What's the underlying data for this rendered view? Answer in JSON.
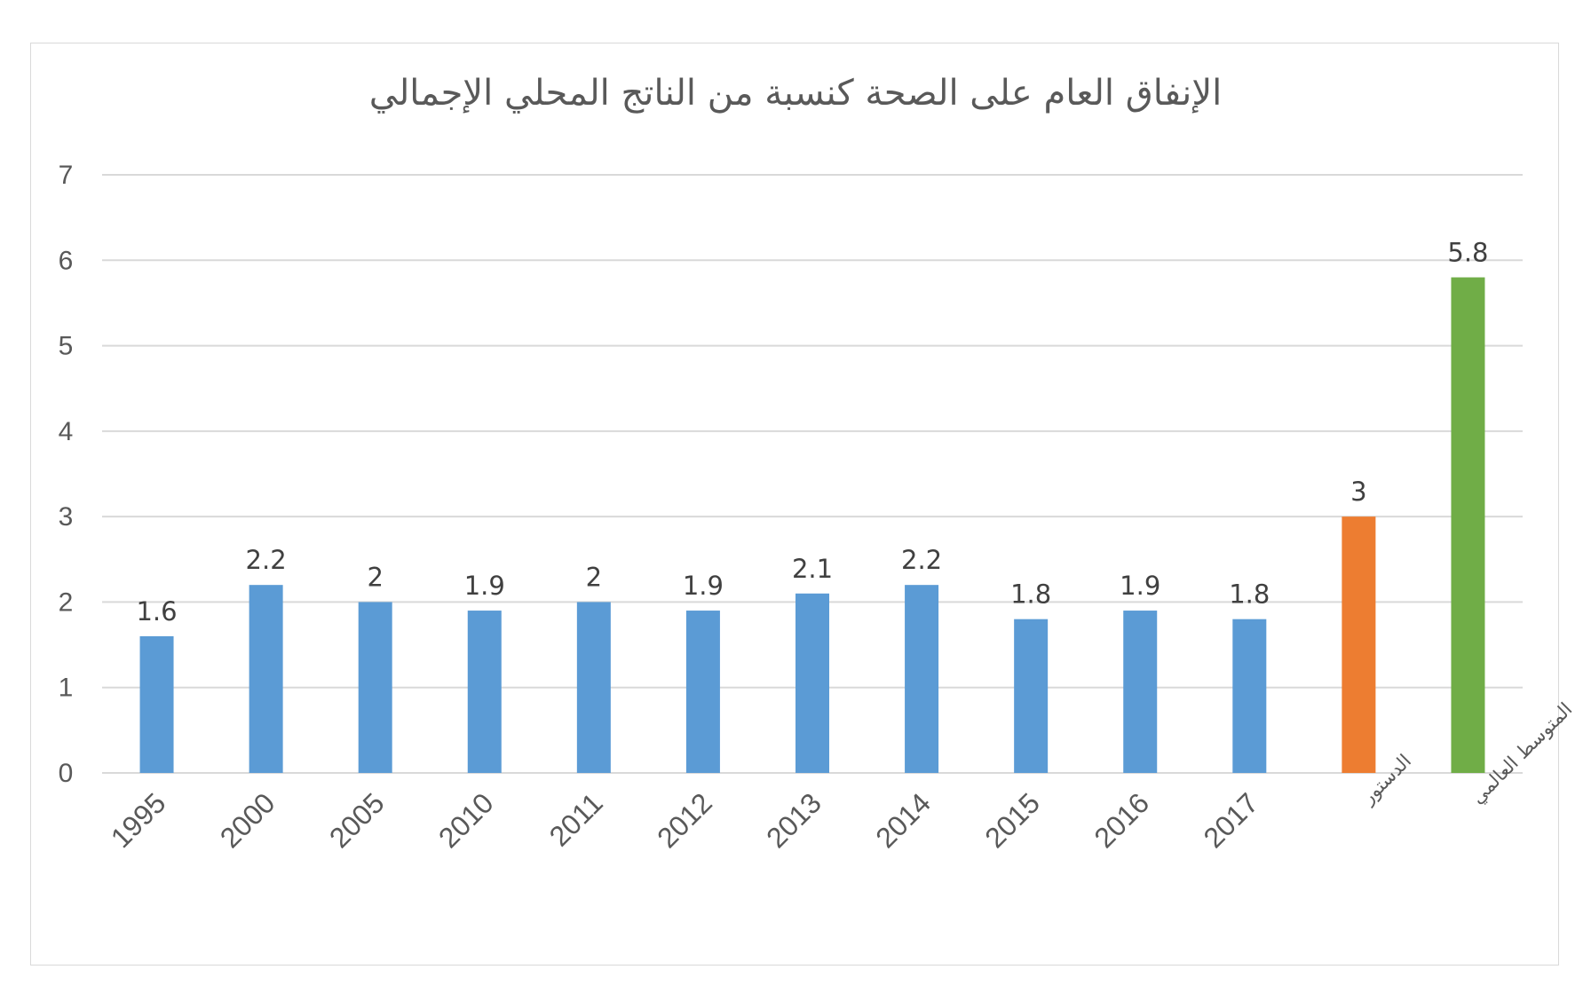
{
  "chart_data": {
    "type": "bar",
    "title": "الإنفاق العام على الصحة كنسبة من الناتج المحلي الإجمالي",
    "xlabel": "",
    "ylabel": "",
    "ylim": [
      0,
      7
    ],
    "yticks": [
      0,
      1,
      2,
      3,
      4,
      5,
      6,
      7
    ],
    "grid": true,
    "legend": "none",
    "categories": [
      "1995",
      "2000",
      "2005",
      "2010",
      "2011",
      "2012",
      "2013",
      "2014",
      "2015",
      "2016",
      "2017",
      "الدستور",
      "المتوسط العالمي"
    ],
    "values": [
      1.6,
      2.2,
      2,
      1.9,
      2,
      1.9,
      2.1,
      2.2,
      1.8,
      1.9,
      1.8,
      3,
      5.8
    ],
    "data_labels": [
      "1.6",
      "2.2",
      "2",
      "1.9",
      "2",
      "1.9",
      "2.1",
      "2.2",
      "1.8",
      "1.9",
      "1.8",
      "3",
      "5.8"
    ],
    "bar_colors": [
      "#5b9bd5",
      "#5b9bd5",
      "#5b9bd5",
      "#5b9bd5",
      "#5b9bd5",
      "#5b9bd5",
      "#5b9bd5",
      "#5b9bd5",
      "#5b9bd5",
      "#5b9bd5",
      "#5b9bd5",
      "#ed7d31",
      "#70ad47"
    ]
  }
}
